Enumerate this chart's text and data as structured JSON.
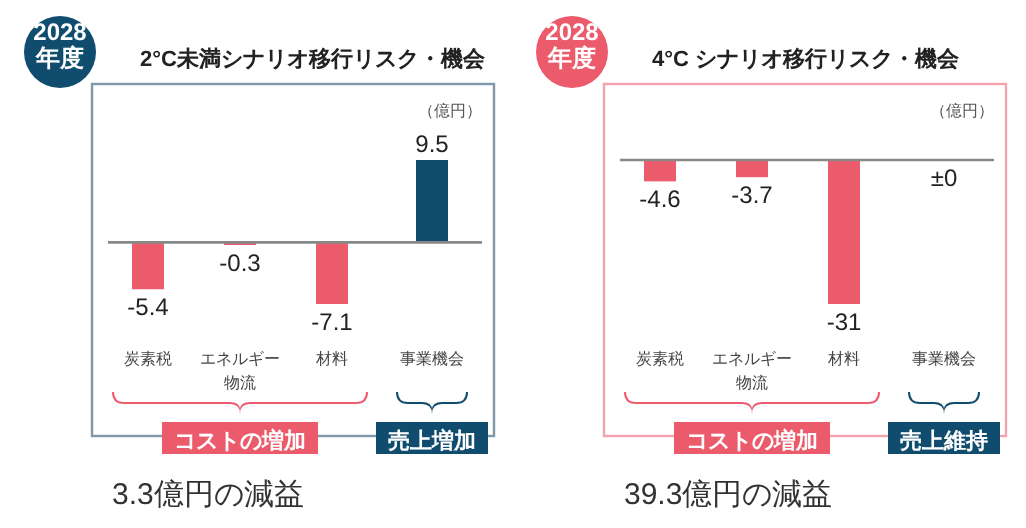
{
  "chart_data": [
    {
      "type": "bar",
      "title": "2°C未満シナリオ移行リスク・機会",
      "subtitle": "2028 年度",
      "categories": [
        "炭素税",
        "エネルギー物流",
        "材料",
        "事業機会"
      ],
      "values": [
        -5.4,
        -0.3,
        -7.1,
        9.5
      ],
      "colors": [
        "#ec5b6b",
        "#ec5b6b",
        "#ec5b6b",
        "#0f4c6e"
      ],
      "data_labels": true,
      "annotations": [
        "（億円）",
        "コストの増加",
        "売上増加",
        "3.3億円の減益"
      ]
    },
    {
      "type": "bar",
      "title": "4°C シナリオ移行リスク・機会",
      "subtitle": "2028 年度",
      "categories": [
        "炭素税",
        "エネルギー物流",
        "材料",
        "事業機会"
      ],
      "values": [
        -4.6,
        -3.7,
        -31,
        0
      ],
      "colors": [
        "#ec5b6b",
        "#ec5b6b",
        "#ec5b6b",
        "#0f4c6e"
      ],
      "value_labels": [
        "-4.6",
        "-3.7",
        "-31",
        "±0"
      ],
      "annotations": [
        "（億円）",
        "コストの増加",
        "売上維持",
        "39.3億円の減益"
      ]
    }
  ]
}
